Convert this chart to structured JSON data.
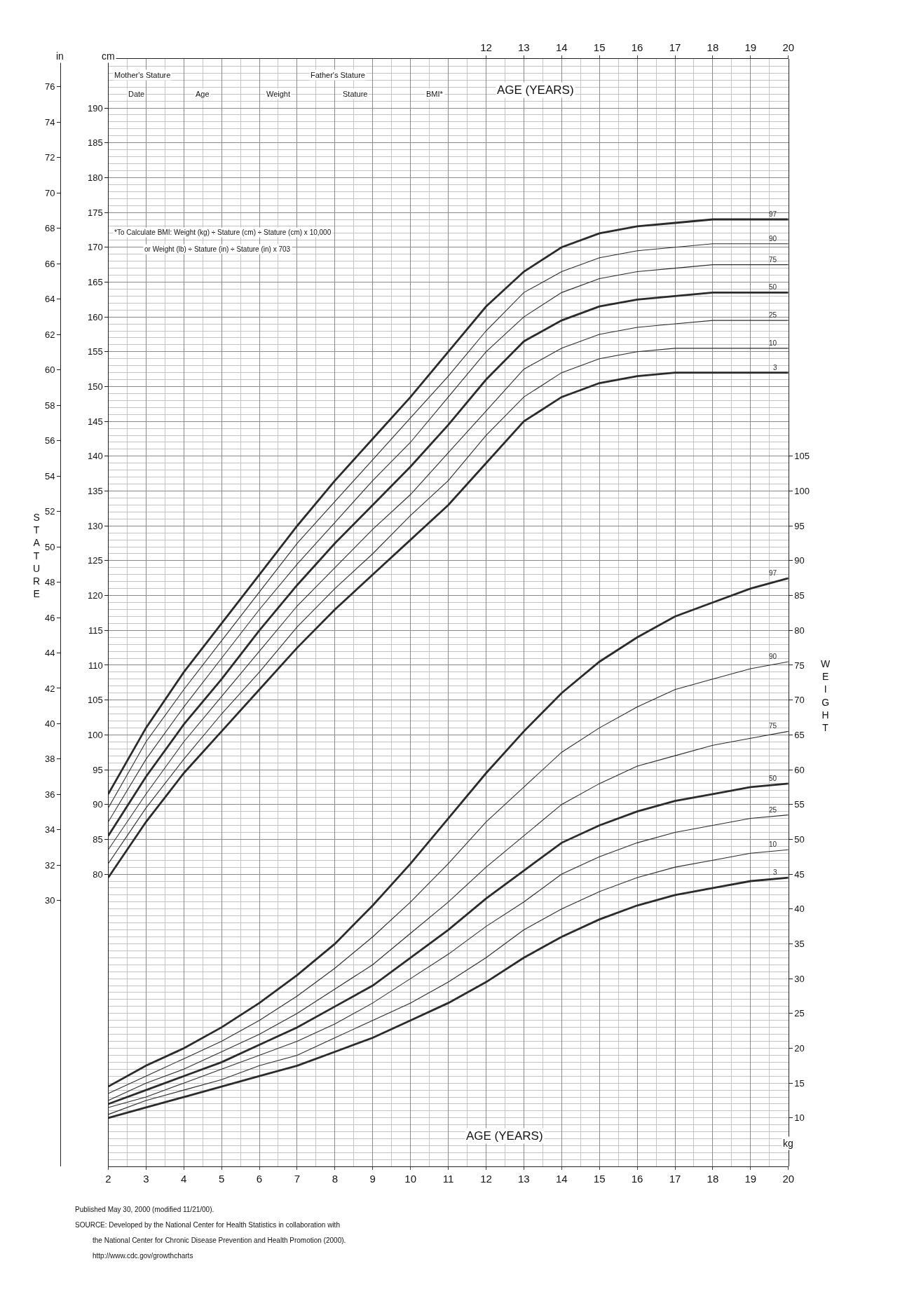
{
  "chart_data": {
    "type": "line",
    "xlabel": "AGE (YEARS)",
    "x2label": "AGE (YEARS)",
    "ylabel": "STATURE",
    "y2label": "WEIGHT",
    "x": [
      2,
      3,
      4,
      5,
      6,
      7,
      8,
      9,
      10,
      11,
      12,
      13,
      14,
      15,
      16,
      17,
      18,
      19,
      20
    ],
    "xlim": [
      2,
      20
    ],
    "xticks": [
      2,
      3,
      4,
      5,
      6,
      7,
      8,
      9,
      10,
      11,
      12,
      13,
      14,
      15,
      16,
      17,
      18,
      19,
      20
    ],
    "x2lim": [
      2,
      20
    ],
    "x2ticks": [
      12,
      13,
      14,
      15,
      16,
      17,
      18,
      19,
      20
    ],
    "ylim": [
      38,
      197
    ],
    "yticks": [
      80,
      85,
      90,
      95,
      100,
      105,
      110,
      115,
      120,
      125,
      130,
      135,
      140,
      145,
      150,
      155,
      160,
      165,
      170,
      175,
      180,
      185,
      190
    ],
    "y2lim": [
      3,
      162
    ],
    "y2ticks": [
      10,
      15,
      20,
      25,
      30,
      35,
      40,
      45,
      50,
      55,
      60,
      65,
      70,
      75,
      80,
      85,
      90,
      95,
      100,
      105
    ],
    "y3lim": [
      14.96,
      77.56
    ],
    "y3ticks": [
      30,
      32,
      34,
      36,
      38,
      40,
      42,
      44,
      46,
      48,
      50,
      52,
      54,
      56,
      58,
      60,
      62,
      64,
      66,
      68,
      70,
      72,
      74,
      76
    ],
    "grid": true,
    "line_style": "solid",
    "series": [
      {
        "name": "97",
        "color": "#2b2b2b",
        "axis": "y",
        "values": [
          91.5,
          101,
          109,
          116,
          123,
          130,
          136.5,
          142.5,
          148.5,
          155,
          161.5,
          166.5,
          170,
          172,
          173,
          173.5,
          174,
          174,
          174
        ]
      },
      {
        "name": "90",
        "color": "#2b2b2b",
        "axis": "y",
        "values": [
          89.5,
          99,
          106.5,
          113.5,
          120.5,
          127.5,
          133.5,
          139.5,
          145.5,
          151.5,
          158,
          163.5,
          166.5,
          168.5,
          169.5,
          170,
          170.5,
          170.5,
          170.5
        ]
      },
      {
        "name": "75",
        "color": "#2b2b2b",
        "axis": "y",
        "values": [
          87.5,
          96.5,
          104,
          111,
          118,
          124.5,
          130.5,
          136.5,
          142,
          148.5,
          155,
          160,
          163.5,
          165.5,
          166.5,
          167,
          167.5,
          167.5,
          167.5
        ]
      },
      {
        "name": "50",
        "color": "#2b2b2b",
        "axis": "y",
        "values": [
          85.5,
          94,
          101.5,
          108,
          115,
          121.5,
          127.5,
          133,
          138.5,
          144.5,
          151,
          156.5,
          159.5,
          161.5,
          162.5,
          163,
          163.5,
          163.5,
          163.5
        ]
      },
      {
        "name": "25",
        "color": "#2b2b2b",
        "axis": "y",
        "values": [
          83.5,
          91.5,
          99,
          105.5,
          112,
          118.5,
          124,
          129.5,
          134.5,
          140.5,
          146.5,
          152.5,
          155.5,
          157.5,
          158.5,
          159,
          159.5,
          159.5,
          159.5
        ]
      },
      {
        "name": "10",
        "color": "#2b2b2b",
        "axis": "y",
        "values": [
          81.5,
          89.5,
          96.5,
          103,
          109,
          115.5,
          121,
          126,
          131.5,
          136.5,
          143,
          148.5,
          152,
          154,
          155,
          155.5,
          155.5,
          155.5,
          155.5
        ]
      },
      {
        "name": "3",
        "color": "#2b2b2b",
        "axis": "y",
        "values": [
          79.5,
          87.5,
          94.5,
          100.5,
          106.5,
          112.5,
          118,
          123,
          128,
          133,
          139,
          145,
          148.5,
          150.5,
          151.5,
          152,
          152,
          152,
          152
        ]
      },
      {
        "name": "97",
        "color": "#2b2b2b",
        "axis": "y2",
        "values": [
          14.5,
          17.5,
          20,
          23,
          26.5,
          30.5,
          35,
          40.5,
          46.5,
          53,
          59.5,
          65.5,
          71,
          75.5,
          79,
          82,
          84,
          86,
          87.5
        ]
      },
      {
        "name": "90",
        "color": "#2b2b2b",
        "axis": "y2",
        "values": [
          13.5,
          16,
          18.5,
          21,
          24,
          27.5,
          31.5,
          36,
          41,
          46.5,
          52.5,
          57.5,
          62.5,
          66,
          69,
          71.5,
          73,
          74.5,
          75.5
        ]
      },
      {
        "name": "75",
        "color": "#2b2b2b",
        "axis": "y2",
        "values": [
          12.5,
          15,
          17,
          19.5,
          22,
          25,
          28.5,
          32,
          36.5,
          41,
          46,
          50.5,
          55,
          58,
          60.5,
          62,
          63.5,
          64.5,
          65.5
        ]
      },
      {
        "name": "50",
        "color": "#2b2b2b",
        "axis": "y2",
        "values": [
          12,
          14,
          16,
          18,
          20.5,
          23,
          26,
          29,
          33,
          37,
          41.5,
          45.5,
          49.5,
          52,
          54,
          55.5,
          56.5,
          57.5,
          58
        ]
      },
      {
        "name": "25",
        "color": "#2b2b2b",
        "axis": "y2",
        "values": [
          11.5,
          13,
          15,
          17,
          19,
          21,
          23.5,
          26.5,
          30,
          33.5,
          37.5,
          41,
          45,
          47.5,
          49.5,
          51,
          52,
          53,
          53.5
        ]
      },
      {
        "name": "10",
        "color": "#2b2b2b",
        "axis": "y2",
        "values": [
          10.5,
          12.5,
          14,
          15.5,
          17.5,
          19,
          21.5,
          24,
          26.5,
          29.5,
          33,
          37,
          40,
          42.5,
          44.5,
          46,
          47,
          48,
          48.5
        ]
      },
      {
        "name": "3",
        "color": "#2b2b2b",
        "axis": "y2",
        "values": [
          10,
          11.5,
          13,
          14.5,
          16,
          17.5,
          19.5,
          21.5,
          24,
          26.5,
          29.5,
          33,
          36,
          38.5,
          40.5,
          42,
          43,
          44,
          44.5
        ]
      }
    ],
    "annotations": [
      "in",
      "cm",
      "kg",
      "Mother's Stature",
      "Father's Stature",
      "Date",
      "Age",
      "Weight",
      "Stature",
      "BMI*",
      "*To Calculate BMI: Weight (kg) ÷ Stature (cm) ÷ Stature (cm) x 10,000",
      "or Weight (lb) ÷ Stature (in) ÷ Stature (in) x 703",
      "Published May 30, 2000 (modified 11/21/00).",
      "SOURCE: Developed by the National Center for Health Statistics in collaboration with",
      "the National Center for Chronic Disease Prevention and Health Promotion (2000).",
      "http://www.cdc.gov/growthcharts"
    ]
  }
}
